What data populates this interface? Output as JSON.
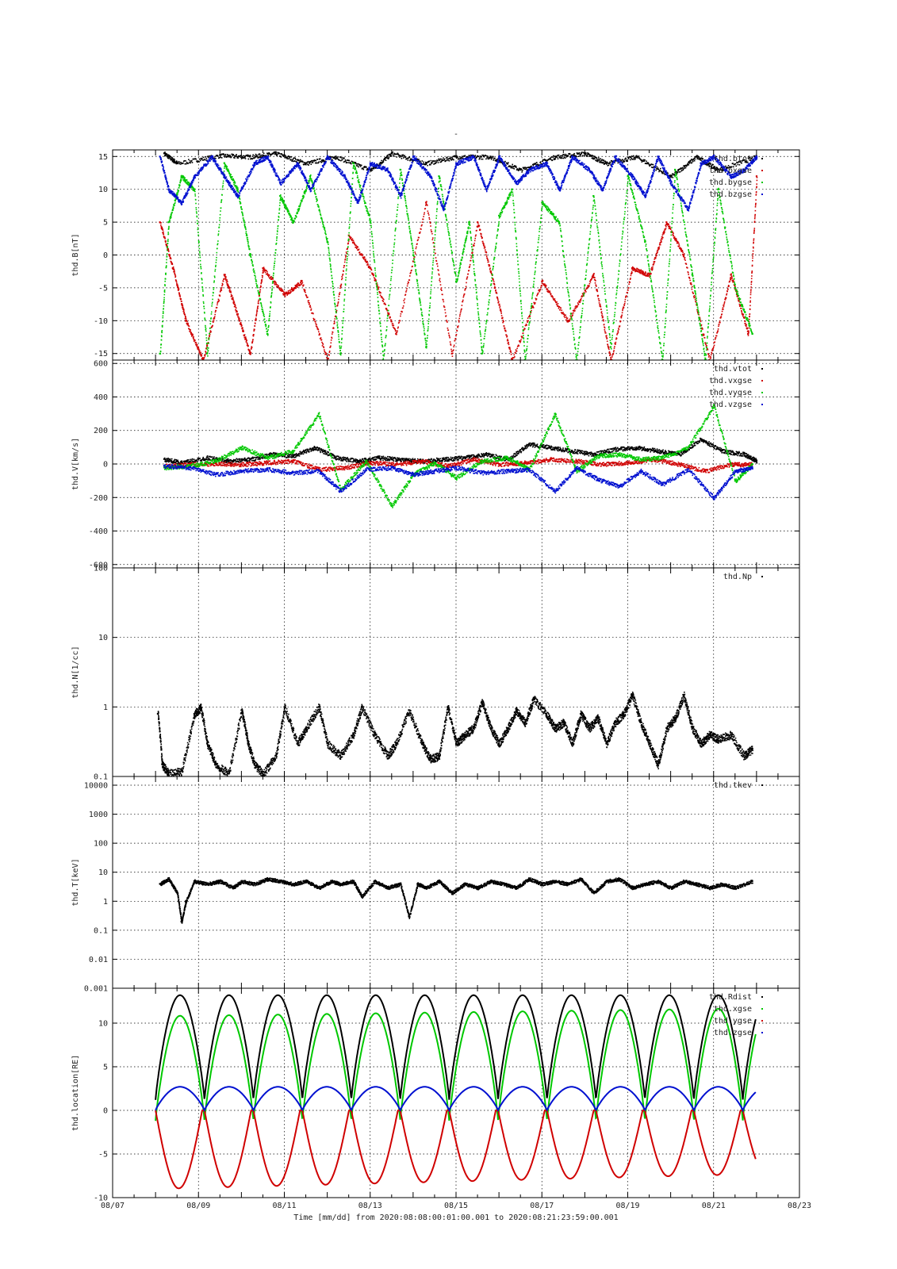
{
  "figure": {
    "top_marker": "-",
    "x_axis": {
      "ticks": [
        "08/07",
        "08/09",
        "08/11",
        "08/13",
        "08/15",
        "08/17",
        "08/19",
        "08/21",
        "08/23"
      ],
      "label": "Time [mm/dd]  from 2020:08:08:00:01:00.001  to  2020:08:21:23:59:00.001"
    }
  },
  "chart_data": [
    {
      "type": "scatter",
      "ylabel": "thd.B[nT]",
      "ylim": [
        -16,
        16
      ],
      "yticks": [
        15,
        10,
        5,
        0,
        -5,
        -10,
        -15
      ],
      "xlim": [
        0,
        16
      ],
      "grid": true,
      "legend_position": "top-right",
      "series": [
        {
          "name": "thd.btot",
          "color": "#000000",
          "x": [
            1.2,
            1.5,
            2.5,
            3.2,
            3.8,
            4.5,
            5.2,
            6.0,
            6.5,
            7.3,
            8.0,
            8.8,
            9.5,
            10.3,
            11.0,
            11.5,
            12.2,
            13.0,
            13.6,
            14.1,
            15.0
          ],
          "y": [
            15.5,
            14,
            15.2,
            15,
            15.5,
            14,
            15,
            13,
            15.5,
            14,
            15,
            15,
            13,
            15,
            15.5,
            14,
            15,
            12,
            15,
            13,
            15
          ]
        },
        {
          "name": "thd.bxgse",
          "color": "#d00000",
          "x": [
            1.1,
            1.4,
            1.7,
            2.1,
            2.6,
            2.9,
            3.2,
            3.5,
            4.0,
            4.4,
            5.0,
            5.5,
            6.0,
            6.6,
            7.3,
            7.9,
            8.5,
            8.9,
            9.3,
            10.0,
            10.6,
            11.2,
            11.6,
            12.1,
            12.5,
            12.9,
            13.3,
            13.9,
            14.4,
            14.8,
            15.0
          ],
          "y": [
            5,
            -2,
            -10,
            -16,
            -3,
            -9,
            -15,
            -2,
            -6,
            -4,
            -16,
            3,
            -2,
            -12,
            8,
            -15,
            5,
            -5,
            -16,
            -4,
            -10,
            -3,
            -16,
            -2,
            -3,
            5,
            0,
            -16,
            -3,
            -12,
            12
          ]
        },
        {
          "name": "thd.bygse",
          "color": "#00c800",
          "x": [
            1.1,
            1.3,
            1.6,
            1.9,
            2.2,
            2.6,
            2.9,
            3.2,
            3.6,
            3.9,
            4.2,
            4.6,
            5.0,
            5.3,
            5.6,
            6.0,
            6.3,
            6.7,
            7.0,
            7.3,
            7.6,
            8.0,
            8.3,
            8.6,
            9.0,
            9.3,
            9.6,
            10.0,
            10.4,
            10.8,
            11.2,
            11.6,
            12.0,
            12.4,
            12.8,
            13.1,
            13.5,
            13.8,
            14.1,
            14.5,
            14.9
          ],
          "y": [
            -15,
            5,
            12,
            10,
            -15,
            14,
            10,
            0,
            -12,
            9,
            5,
            12,
            2,
            -15,
            14,
            5,
            -16,
            13,
            0,
            -14,
            12,
            -4,
            5,
            -15,
            6,
            10,
            -16,
            8,
            5,
            -16,
            9,
            -14,
            12,
            2,
            -16,
            13,
            -3,
            -16,
            10,
            -5,
            -12
          ]
        },
        {
          "name": "thd.bzgse",
          "color": "#0010d0",
          "x": [
            1.1,
            1.3,
            1.6,
            1.9,
            2.3,
            2.6,
            2.9,
            3.3,
            3.6,
            3.9,
            4.3,
            4.6,
            5.0,
            5.4,
            5.7,
            6.0,
            6.4,
            6.7,
            7.0,
            7.4,
            7.7,
            8.0,
            8.4,
            8.7,
            9.0,
            9.4,
            9.7,
            10.1,
            10.4,
            10.7,
            11.1,
            11.4,
            11.7,
            12.1,
            12.4,
            12.7,
            13.0,
            13.4,
            13.7,
            14.0,
            14.4,
            14.7,
            15.0
          ],
          "y": [
            15,
            10,
            8,
            12,
            15,
            12,
            9,
            14,
            15,
            11,
            14,
            10,
            15,
            12,
            8,
            14,
            13,
            9,
            15,
            12,
            7,
            14,
            15,
            10,
            15,
            11,
            13,
            14,
            10,
            15,
            13,
            10,
            15,
            12,
            9,
            15,
            11,
            7,
            14,
            15,
            12,
            13,
            15
          ]
        }
      ]
    },
    {
      "type": "scatter",
      "ylabel": "thd.V[km/s]",
      "ylim": [
        -620,
        620
      ],
      "yticks": [
        600,
        400,
        200,
        0,
        -200,
        -400,
        -600
      ],
      "xlim": [
        0,
        16
      ],
      "grid": true,
      "legend_position": "top-right",
      "series": [
        {
          "name": "thd.vtot",
          "color": "#000000",
          "x": [
            1.2,
            1.6,
            2.2,
            2.7,
            3.2,
            3.7,
            4.2,
            4.7,
            5.2,
            5.7,
            6.2,
            6.7,
            7.2,
            7.7,
            8.2,
            8.7,
            9.2,
            9.7,
            10.2,
            10.7,
            11.2,
            11.7,
            12.2,
            12.7,
            13.2,
            13.7,
            14.2,
            14.7,
            15.0
          ],
          "y": [
            30,
            10,
            40,
            20,
            30,
            60,
            50,
            100,
            40,
            20,
            40,
            30,
            20,
            30,
            40,
            60,
            30,
            120,
            100,
            80,
            60,
            90,
            100,
            80,
            60,
            150,
            80,
            60,
            20
          ]
        },
        {
          "name": "thd.vxgse",
          "color": "#d00000",
          "x": [
            1.2,
            1.8,
            2.4,
            3.0,
            3.6,
            4.2,
            4.8,
            5.4,
            6.0,
            6.6,
            7.2,
            7.8,
            8.4,
            9.0,
            9.6,
            10.2,
            10.8,
            11.4,
            12.0,
            12.6,
            13.2,
            13.8,
            14.4,
            14.9
          ],
          "y": [
            -10,
            0,
            5,
            0,
            10,
            20,
            -30,
            -20,
            10,
            0,
            20,
            -10,
            30,
            0,
            10,
            30,
            20,
            0,
            10,
            30,
            0,
            -40,
            0,
            0
          ]
        },
        {
          "name": "thd.vygse",
          "color": "#00c800",
          "x": [
            1.2,
            1.8,
            2.4,
            3.0,
            3.6,
            4.2,
            4.8,
            5.3,
            5.9,
            6.5,
            7.0,
            7.5,
            8.0,
            8.6,
            9.2,
            9.7,
            10.3,
            10.8,
            11.3,
            11.8,
            12.3,
            12.8,
            13.4,
            14.0,
            14.5,
            14.9
          ],
          "y": [
            -20,
            -10,
            20,
            100,
            40,
            80,
            300,
            -150,
            20,
            -250,
            -60,
            10,
            -80,
            20,
            40,
            -30,
            300,
            -40,
            50,
            60,
            30,
            40,
            100,
            350,
            -100,
            0
          ]
        },
        {
          "name": "thd.vzgse",
          "color": "#0010d0",
          "x": [
            1.2,
            1.8,
            2.4,
            3.0,
            3.6,
            4.2,
            4.8,
            5.3,
            5.9,
            6.5,
            7.0,
            7.5,
            8.0,
            8.6,
            9.2,
            9.7,
            10.3,
            10.8,
            11.3,
            11.8,
            12.3,
            12.8,
            13.4,
            14.0,
            14.5,
            14.9
          ],
          "y": [
            -10,
            -20,
            -60,
            -40,
            -30,
            -50,
            -40,
            -160,
            -30,
            -20,
            -60,
            -40,
            -20,
            -50,
            -40,
            -30,
            -160,
            -20,
            -90,
            -130,
            -40,
            -120,
            -30,
            -200,
            -40,
            -20
          ]
        }
      ]
    },
    {
      "type": "scatter",
      "ylabel": "thd.N[1/cc]",
      "yscale": "log",
      "ylim": [
        0.1,
        100
      ],
      "yticks": [
        100,
        10,
        1,
        0.1
      ],
      "xlim": [
        0,
        16
      ],
      "grid": true,
      "legend_position": "top-right",
      "series": [
        {
          "name": "thd.Np",
          "color": "#000000",
          "x": [
            1.05,
            1.15,
            1.3,
            1.6,
            1.9,
            2.05,
            2.2,
            2.4,
            2.7,
            3.0,
            3.15,
            3.3,
            3.5,
            3.8,
            4.0,
            4.3,
            4.5,
            4.8,
            5.0,
            5.3,
            5.6,
            5.8,
            6.1,
            6.4,
            6.6,
            6.9,
            7.2,
            7.4,
            7.6,
            7.8,
            8.0,
            8.2,
            8.4,
            8.6,
            8.8,
            9.0,
            9.2,
            9.4,
            9.6,
            9.8,
            10.1,
            10.3,
            10.5,
            10.7,
            10.9,
            11.1,
            11.3,
            11.5,
            11.7,
            11.9,
            12.1,
            12.3,
            12.5,
            12.7,
            12.9,
            13.1,
            13.3,
            13.5,
            13.7,
            13.9,
            14.1,
            14.4,
            14.7,
            14.9
          ],
          "y": [
            0.8,
            0.15,
            0.11,
            0.12,
            0.8,
            1,
            0.3,
            0.15,
            0.11,
            0.9,
            0.3,
            0.15,
            0.11,
            0.2,
            1,
            0.3,
            0.5,
            1,
            0.3,
            0.2,
            0.4,
            1,
            0.4,
            0.2,
            0.3,
            0.9,
            0.3,
            0.18,
            0.2,
            1,
            0.3,
            0.4,
            0.5,
            1.2,
            0.5,
            0.3,
            0.5,
            0.9,
            0.6,
            1.3,
            0.8,
            0.5,
            0.6,
            0.3,
            0.8,
            0.5,
            0.7,
            0.3,
            0.6,
            0.8,
            1.5,
            0.6,
            0.3,
            0.15,
            0.5,
            0.7,
            1.5,
            0.5,
            0.3,
            0.4,
            0.35,
            0.4,
            0.2,
            0.25
          ]
        }
      ]
    },
    {
      "type": "scatter",
      "ylabel": "thd.T[keV]",
      "yscale": "log",
      "ylim": [
        0.001,
        20000
      ],
      "yticks": [
        "10000",
        "1000",
        "100",
        "10",
        "1",
        "0.1",
        "0.01",
        "0.001"
      ],
      "xlim": [
        0,
        16
      ],
      "grid": true,
      "legend_position": "top-right",
      "series": [
        {
          "name": "thd.tkev",
          "color": "#000000",
          "x": [
            1.1,
            1.3,
            1.5,
            1.6,
            1.7,
            1.9,
            2.2,
            2.5,
            2.8,
            3.0,
            3.3,
            3.6,
            3.9,
            4.2,
            4.5,
            4.8,
            5.1,
            5.3,
            5.6,
            5.8,
            6.1,
            6.4,
            6.7,
            6.9,
            7.1,
            7.3,
            7.6,
            7.9,
            8.2,
            8.5,
            8.8,
            9.1,
            9.4,
            9.7,
            10.0,
            10.3,
            10.6,
            10.9,
            11.2,
            11.5,
            11.8,
            12.1,
            12.4,
            12.7,
            13.0,
            13.3,
            13.6,
            13.9,
            14.2,
            14.5,
            14.9
          ],
          "y": [
            4,
            6,
            2,
            0.2,
            1,
            5,
            4,
            5,
            3,
            5,
            4,
            6,
            5,
            4,
            5,
            3,
            5,
            4,
            5,
            1.5,
            5,
            3,
            4,
            0.3,
            4,
            3,
            5,
            2,
            4,
            3,
            5,
            4,
            3,
            6,
            4,
            5,
            4,
            6,
            2,
            5,
            6,
            3,
            4,
            5,
            3,
            5,
            4,
            3,
            4,
            3,
            5
          ]
        }
      ]
    },
    {
      "type": "line",
      "ylabel": "thd.location[RE]",
      "ylim": [
        -10,
        14
      ],
      "yticks": [
        10,
        5,
        0,
        -5,
        -10
      ],
      "xlim": [
        0,
        16
      ],
      "grid": true,
      "legend_position": "top-right",
      "orbit": {
        "t_start": 1.0,
        "t_end": 14.98,
        "period": 1.14
      },
      "series": [
        {
          "name": "thd.Rdist",
          "color": "#000000",
          "amp_start": 13.2,
          "amp_end": 13.2,
          "min": 1.2
        },
        {
          "name": "thd.xgse",
          "color": "#00c800",
          "amp_start": 10.8,
          "amp_end": 11.7,
          "min": -1.2
        },
        {
          "name": "thd.ygse",
          "color": "#d00000",
          "amp_start": -9.0,
          "amp_end": -7.3,
          "min": 0.0
        },
        {
          "name": "thd.zgse",
          "color": "#0010d0",
          "amp_start": 2.7,
          "amp_end": 2.7,
          "min": 0.0
        }
      ]
    }
  ]
}
